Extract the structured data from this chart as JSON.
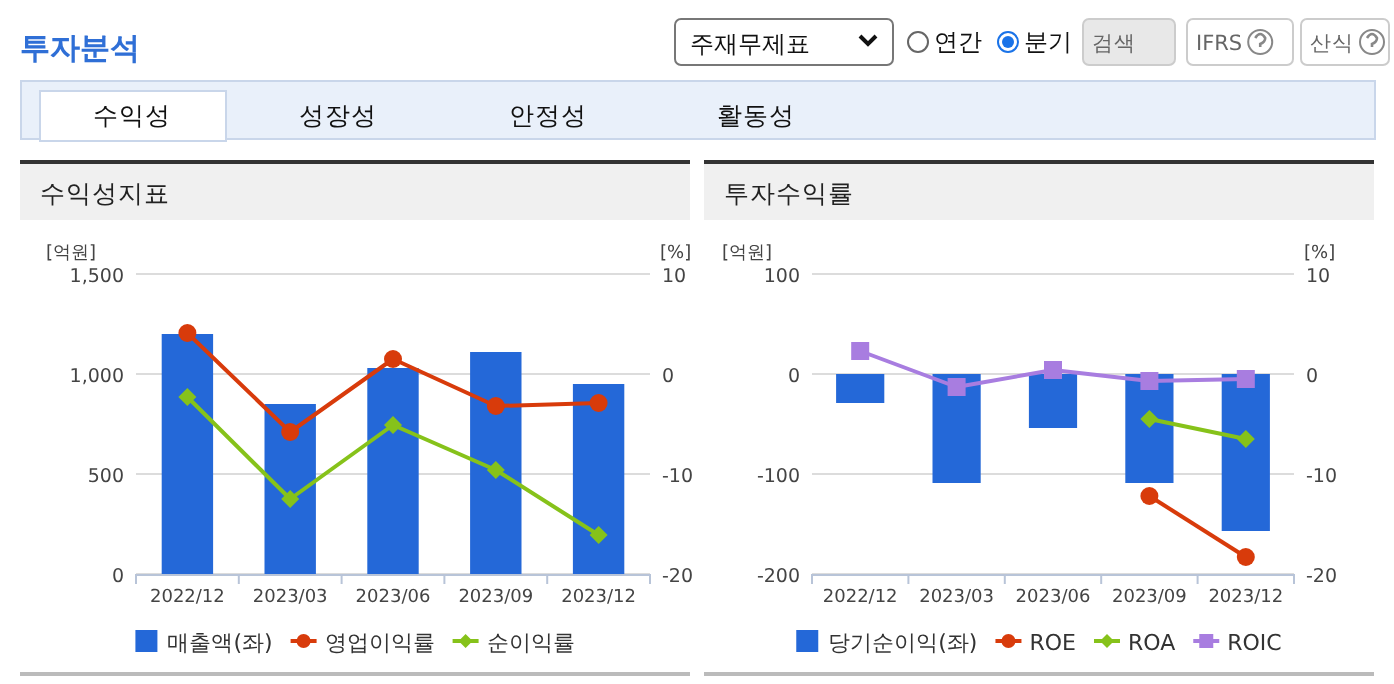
{
  "chart_data": [
    {
      "type": "other",
      "title": "투자분석",
      "annotations": [
        "주재무제표",
        "연간",
        "분기",
        "검색",
        "IFRS",
        "산식",
        "수익성",
        "성장성",
        "안정성",
        "활동성"
      ]
    },
    {
      "type": "bar",
      "title": "수익성지표",
      "ylabel": "[억원]",
      "y2label": "[%]",
      "categories": [
        "2022/12",
        "2023/03",
        "2023/06",
        "2023/09",
        "2023/12"
      ],
      "ylim": [
        0,
        1500
      ],
      "yticks": [
        0,
        500,
        {
          "value": 1000,
          "label": "1,000"
        },
        {
          "value": 1500,
          "label": "1,500"
        }
      ],
      "y2lim": [
        -20,
        10
      ],
      "y2ticks": [
        -20,
        -10,
        0,
        10
      ],
      "grid": "y",
      "legend": "bottom",
      "series": [
        {
          "name": "매출액(좌)",
          "type": "bar",
          "color": "#2468d8",
          "values": [
            1200,
            850,
            1030,
            1110,
            950
          ]
        },
        {
          "name": "영업이익률",
          "type": "line",
          "axis": "y2",
          "marker": "circle",
          "color": "#d83b0b",
          "values": [
            4.1,
            -5.8,
            1.5,
            -3.2,
            -2.9
          ]
        },
        {
          "name": "순이익률",
          "type": "line",
          "axis": "y2",
          "marker": "diamond",
          "color": "#86c21a",
          "values": [
            -2.3,
            -12.5,
            -5.1,
            -9.6,
            -16.1
          ]
        }
      ]
    },
    {
      "type": "bar",
      "title": "투자수익률",
      "ylabel": "[억원]",
      "y2label": "[%]",
      "categories": [
        "2022/12",
        "2023/03",
        "2023/06",
        "2023/09",
        "2023/12"
      ],
      "ylim": [
        -200,
        100
      ],
      "yticks": [
        -200,
        -100,
        0,
        100
      ],
      "y2lim": [
        -20,
        10
      ],
      "y2ticks": [
        -20,
        -10,
        0,
        10
      ],
      "grid": "y",
      "legend": "bottom",
      "series": [
        {
          "name": "당기순이익(좌)",
          "type": "bar",
          "color": "#2468d8",
          "values": [
            -29,
            -109,
            -54,
            -109,
            -157
          ]
        },
        {
          "name": "ROE",
          "type": "line",
          "axis": "y2",
          "marker": "circle",
          "color": "#d83b0b",
          "values": [
            null,
            null,
            null,
            -12.2,
            -18.3
          ]
        },
        {
          "name": "ROA",
          "type": "line",
          "axis": "y2",
          "marker": "diamond",
          "color": "#86c21a",
          "values": [
            null,
            null,
            null,
            -4.5,
            -6.5
          ]
        },
        {
          "name": "ROIC",
          "type": "line",
          "axis": "y2",
          "marker": "square",
          "color": "#a87de0",
          "values": [
            2.3,
            -1.3,
            0.4,
            -0.7,
            -0.5
          ]
        }
      ]
    }
  ]
}
